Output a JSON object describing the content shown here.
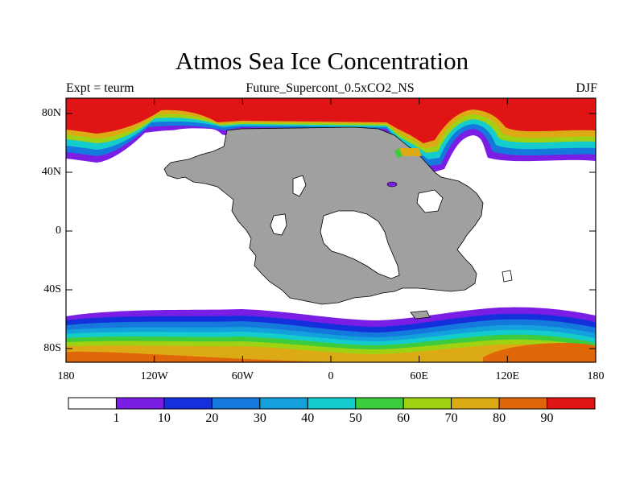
{
  "header": {
    "title": "Atmos Sea Ice Concentration",
    "subtitle": "Future_Supercont_0.5xCO2_NS",
    "experiment": "Expt = teurm",
    "season": "DJF"
  },
  "axes": {
    "y_ticks": [
      "80N",
      "40N",
      "0",
      "40S",
      "80S"
    ],
    "x_ticks": [
      "180",
      "120W",
      "60W",
      "0",
      "60E",
      "120E",
      "180"
    ]
  },
  "colorbar": {
    "labels": [
      "1",
      "10",
      "20",
      "30",
      "40",
      "50",
      "60",
      "70",
      "80",
      "90"
    ],
    "colors": [
      "#ffffff",
      "#7a1ee6",
      "#1430dc",
      "#1478dc",
      "#14a0dc",
      "#14cccc",
      "#3ccc3c",
      "#a0d214",
      "#dcaa14",
      "#e0660a",
      "#e01414"
    ]
  },
  "map": {
    "land_color": "#a0a0a0",
    "ocean_color": "#ffffff"
  }
}
